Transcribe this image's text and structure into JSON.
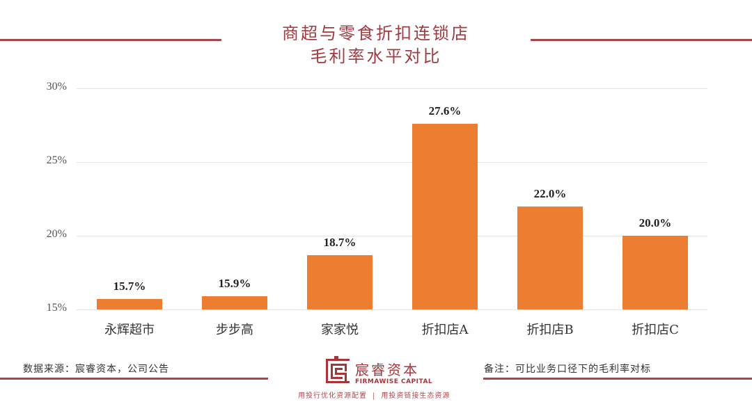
{
  "title": {
    "line1": "商超与零食折扣连锁店",
    "line2": "毛利率水平对比"
  },
  "colors": {
    "accent": "#a8464c",
    "bar": "#ed7d31",
    "grid": "#e4e4e4"
  },
  "chart_data": {
    "type": "bar",
    "title": "商超与零食折扣连锁店毛利率水平对比",
    "categories": [
      "永辉超市",
      "步步高",
      "家家悦",
      "折扣店A",
      "折扣店B",
      "折扣店C"
    ],
    "values": [
      15.7,
      15.9,
      18.7,
      27.6,
      22.0,
      20.0
    ],
    "value_labels": [
      "15.7%",
      "15.9%",
      "18.7%",
      "27.6%",
      "22.0%",
      "20.0%"
    ],
    "xlabel": "",
    "ylabel": "",
    "ylim": [
      15,
      30
    ],
    "yticks": [
      "15%",
      "20%",
      "25%",
      "30%"
    ],
    "grid": true,
    "legend": false
  },
  "footer": {
    "source": "数据来源：宸睿资本，公司公告",
    "note": "备注：可比业务口径下的毛利率对标",
    "logo": {
      "cn": "宸睿资本",
      "en": "FIRMAWISE CAPITAL"
    },
    "slogan_left": "用投行优化资源配置",
    "slogan_sep": "|",
    "slogan_right": "用投资链接生态资源"
  }
}
